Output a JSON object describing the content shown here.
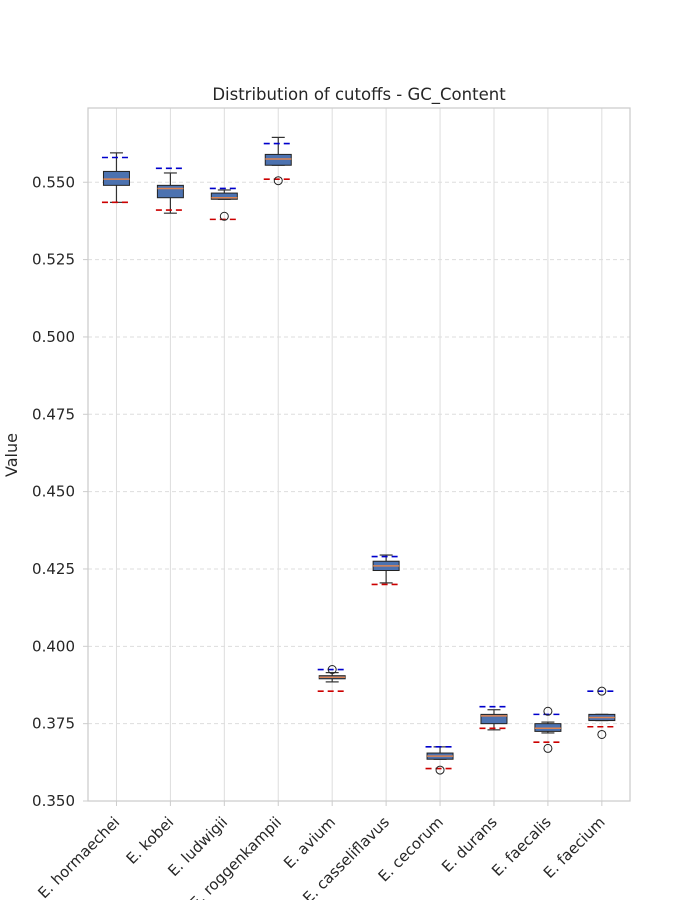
{
  "chart_data": {
    "type": "box",
    "title": "Distribution of cutoffs - GC_Content",
    "xlabel": "",
    "ylabel": "Value",
    "ylim": [
      0.35,
      0.574
    ],
    "yticks": [
      "0.350",
      "0.375",
      "0.400",
      "0.425",
      "0.450",
      "0.475",
      "0.500",
      "0.525",
      "0.550"
    ],
    "grid": true,
    "colors": {
      "box_fill": "#4c72b0",
      "median": "#dd8452",
      "upper_cutoff": "#0000cc",
      "lower_cutoff": "#cc0000",
      "grid": "#dddddd",
      "frame": "#cccccc",
      "whisker": "#333333"
    },
    "categories": [
      "E. hormaechei",
      "E. kobei",
      "E. ludwigii",
      "E. roggenkampii",
      "E. avium",
      "E. casseliflavus",
      "E. cecorum",
      "E. durans",
      "E. faecalis",
      "E. faecium"
    ],
    "boxes": [
      {
        "whisker_low": 0.5435,
        "q1": 0.549,
        "median": 0.551,
        "q3": 0.5535,
        "whisker_high": 0.5595,
        "outliers": [],
        "upper_cutoff": 0.558,
        "lower_cutoff": 0.5435
      },
      {
        "whisker_low": 0.54,
        "q1": 0.545,
        "median": 0.548,
        "q3": 0.549,
        "whisker_high": 0.553,
        "outliers": [],
        "upper_cutoff": 0.5545,
        "lower_cutoff": 0.541
      },
      {
        "whisker_low": 0.5445,
        "q1": 0.5445,
        "median": 0.545,
        "q3": 0.5465,
        "whisker_high": 0.5475,
        "outliers": [
          0.539
        ],
        "upper_cutoff": 0.548,
        "lower_cutoff": 0.538
      },
      {
        "whisker_low": 0.5555,
        "q1": 0.5555,
        "median": 0.5575,
        "q3": 0.559,
        "whisker_high": 0.5645,
        "outliers": [
          0.5505
        ],
        "upper_cutoff": 0.5625,
        "lower_cutoff": 0.551
      },
      {
        "whisker_low": 0.3885,
        "q1": 0.3895,
        "median": 0.39,
        "q3": 0.3905,
        "whisker_high": 0.3915,
        "outliers": [
          0.3925
        ],
        "upper_cutoff": 0.3925,
        "lower_cutoff": 0.3855
      },
      {
        "whisker_low": 0.4205,
        "q1": 0.4245,
        "median": 0.426,
        "q3": 0.4275,
        "whisker_high": 0.4295,
        "outliers": [],
        "upper_cutoff": 0.429,
        "lower_cutoff": 0.42
      },
      {
        "whisker_low": 0.3635,
        "q1": 0.3635,
        "median": 0.3645,
        "q3": 0.3655,
        "whisker_high": 0.3675,
        "outliers": [
          0.36
        ],
        "upper_cutoff": 0.3675,
        "lower_cutoff": 0.3605
      },
      {
        "whisker_low": 0.373,
        "q1": 0.375,
        "median": 0.3775,
        "q3": 0.378,
        "whisker_high": 0.3795,
        "outliers": [],
        "upper_cutoff": 0.3805,
        "lower_cutoff": 0.3735
      },
      {
        "whisker_low": 0.372,
        "q1": 0.3725,
        "median": 0.3735,
        "q3": 0.375,
        "whisker_high": 0.3755,
        "outliers": [
          0.367,
          0.379
        ],
        "upper_cutoff": 0.378,
        "lower_cutoff": 0.369
      },
      {
        "whisker_low": 0.376,
        "q1": 0.376,
        "median": 0.377,
        "q3": 0.378,
        "whisker_high": 0.378,
        "outliers": [
          0.3715,
          0.3855
        ],
        "upper_cutoff": 0.3855,
        "lower_cutoff": 0.374
      }
    ]
  }
}
